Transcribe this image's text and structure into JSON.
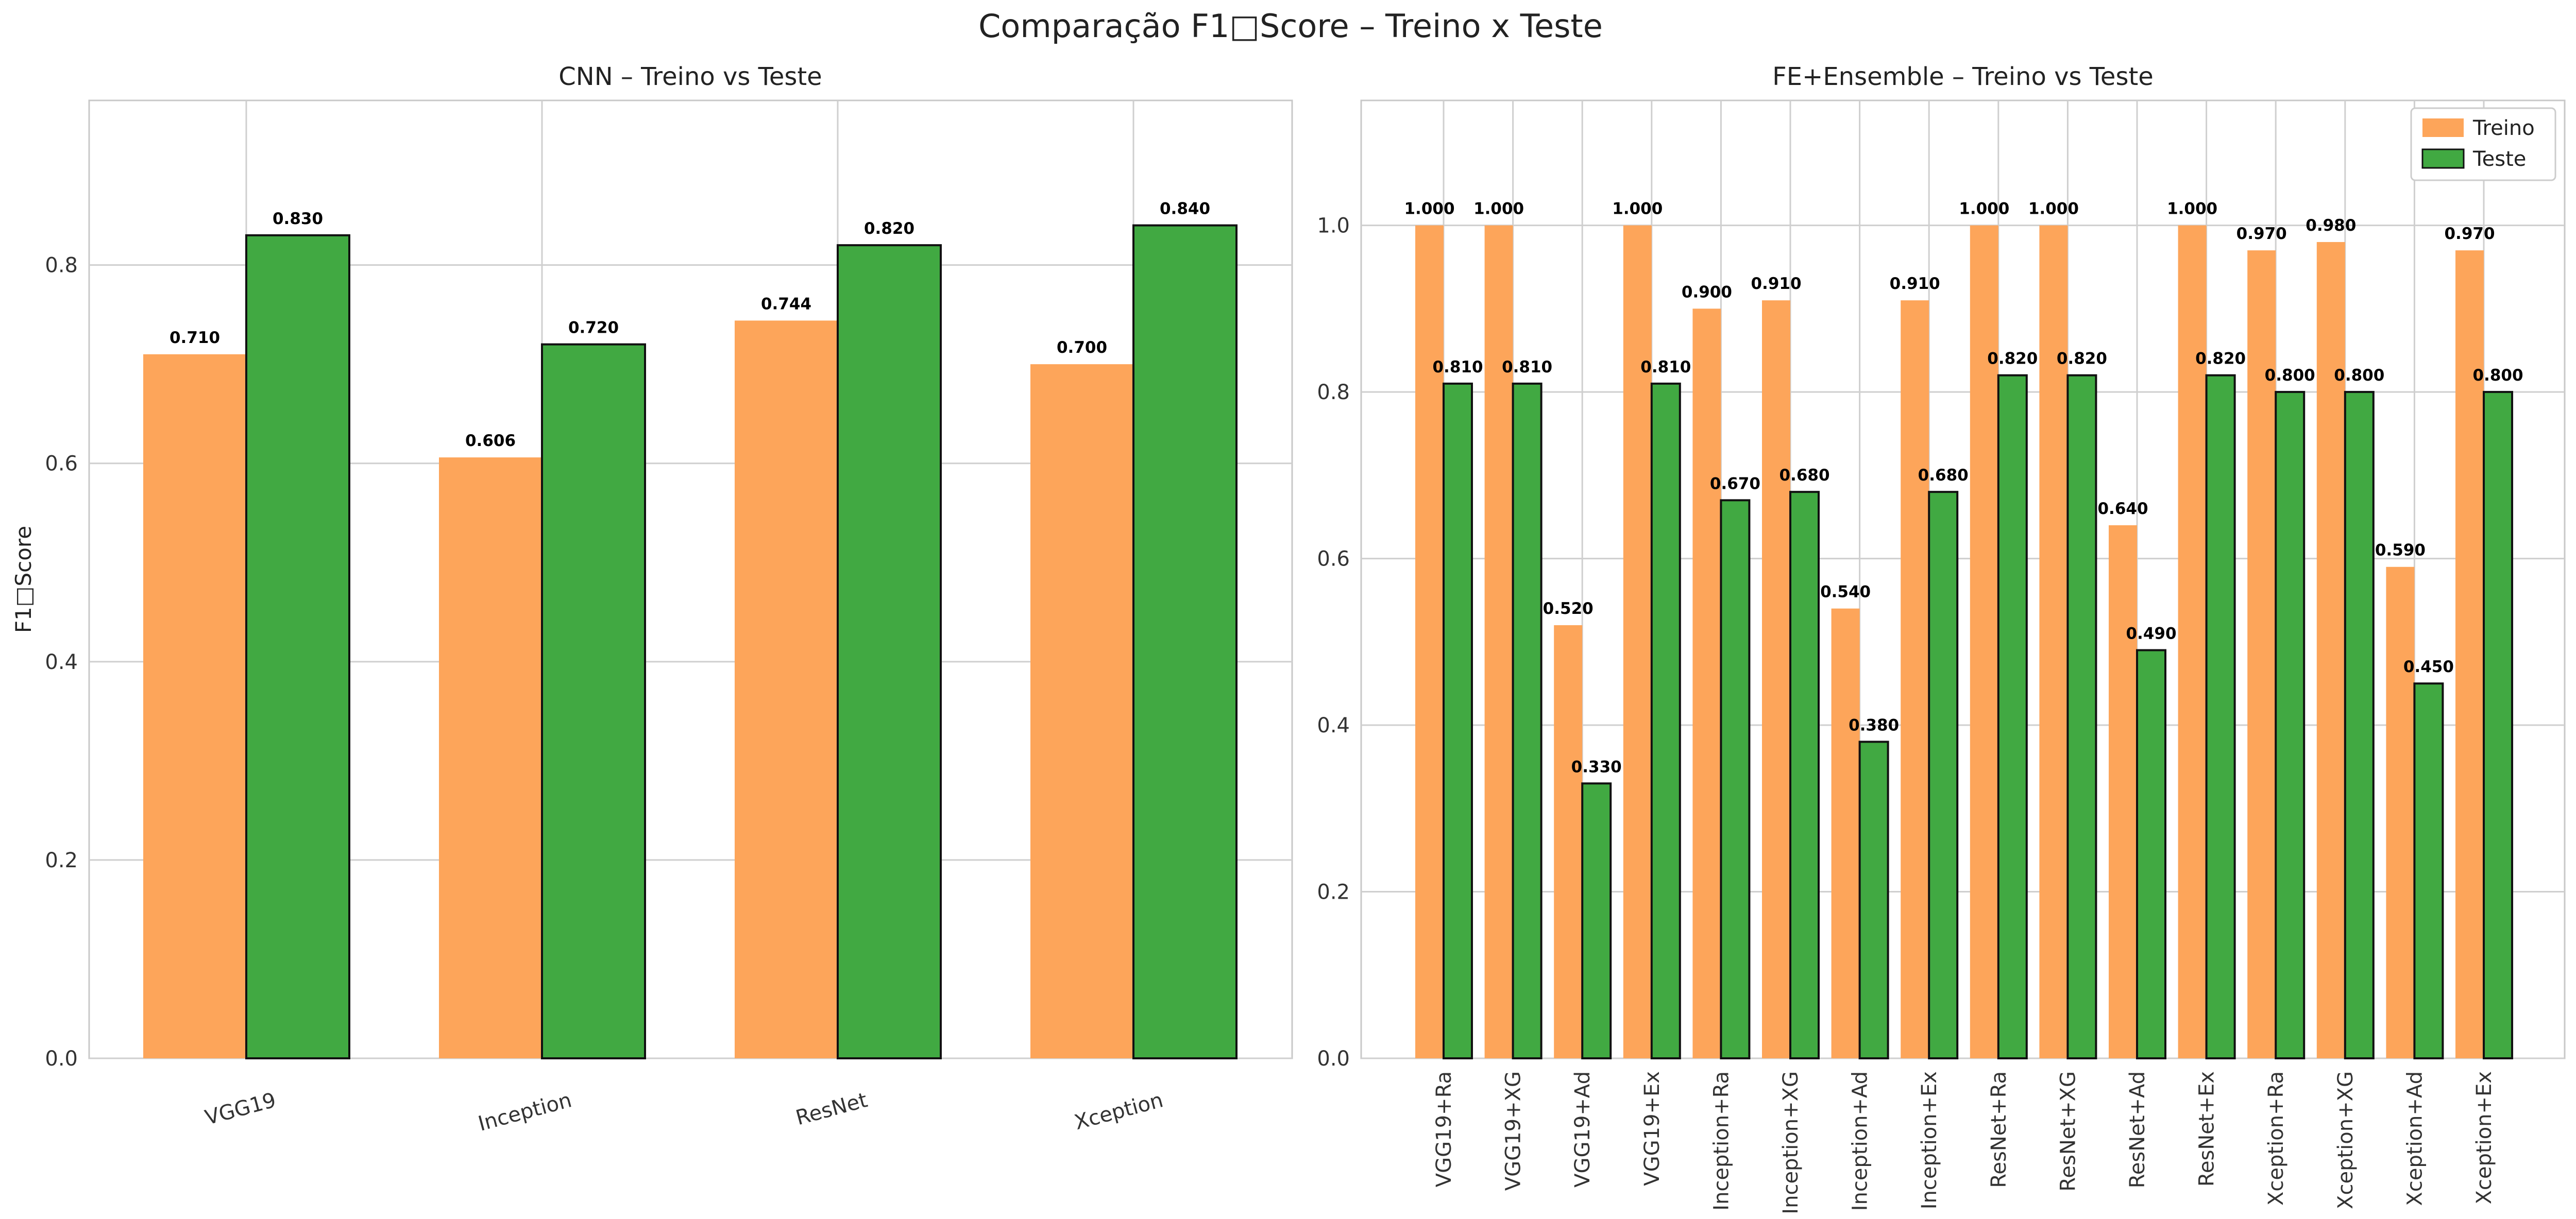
{
  "figure": {
    "title": "Comparação F1□Score – Treino x Teste"
  },
  "colors": {
    "treino": "#fda55a",
    "teste": "#41a942",
    "edge": "#111111"
  },
  "chart_data": [
    {
      "type": "bar",
      "title": "CNN – Treino vs Teste",
      "xlabel": "",
      "ylabel": "F1□Score",
      "ylim": [
        0,
        0.966
      ],
      "yticks": [
        "0.0",
        "0.2",
        "0.4",
        "0.6",
        "0.8"
      ],
      "ytick_values": [
        0,
        0.2,
        0.4,
        0.6,
        0.8
      ],
      "grid": true,
      "legend": "none",
      "categories": [
        "VGG19",
        "Inception",
        "ResNet",
        "Xception"
      ],
      "series": [
        {
          "name": "Treino",
          "values": [
            0.71,
            0.606,
            0.744,
            0.7
          ],
          "labels": [
            "0.710",
            "0.606",
            "0.744",
            "0.700"
          ]
        },
        {
          "name": "Teste",
          "values": [
            0.83,
            0.72,
            0.82,
            0.84
          ],
          "labels": [
            "0.830",
            "0.720",
            "0.820",
            "0.840"
          ]
        }
      ]
    },
    {
      "type": "bar",
      "title": "FE+Ensemble – Treino vs Teste",
      "xlabel": "",
      "ylabel": "",
      "ylim": [
        0,
        1.15
      ],
      "yticks": [
        "0.0",
        "0.2",
        "0.4",
        "0.6",
        "0.8",
        "1.0"
      ],
      "ytick_values": [
        0,
        0.2,
        0.4,
        0.6,
        0.8,
        1.0
      ],
      "grid": true,
      "legend": "top-right",
      "categories": [
        "VGG19+Ra",
        "VGG19+XG",
        "VGG19+Ad",
        "VGG19+Ex",
        "Inception+Ra",
        "Inception+XG",
        "Inception+Ad",
        "Inception+Ex",
        "ResNet+Ra",
        "ResNet+XG",
        "ResNet+Ad",
        "ResNet+Ex",
        "Xception+Ra",
        "Xception+XG",
        "Xception+Ad",
        "Xception+Ex"
      ],
      "series": [
        {
          "name": "Treino",
          "values": [
            1.0,
            1.0,
            0.52,
            1.0,
            0.9,
            0.91,
            0.54,
            0.91,
            1.0,
            1.0,
            0.64,
            1.0,
            0.97,
            0.98,
            0.59,
            0.97
          ],
          "labels": [
            "1.000",
            "1.000",
            "0.520",
            "1.000",
            "0.900",
            "0.910",
            "0.540",
            "0.910",
            "1.000",
            "1.000",
            "0.640",
            "1.000",
            "0.970",
            "0.980",
            "0.590",
            "0.970"
          ]
        },
        {
          "name": "Teste",
          "values": [
            0.81,
            0.81,
            0.33,
            0.81,
            0.67,
            0.68,
            0.38,
            0.68,
            0.82,
            0.82,
            0.49,
            0.82,
            0.8,
            0.8,
            0.45,
            0.8
          ],
          "labels": [
            "0.810",
            "0.810",
            "0.330",
            "0.810",
            "0.670",
            "0.680",
            "0.380",
            "0.680",
            "0.820",
            "0.820",
            "0.490",
            "0.820",
            "0.800",
            "0.800",
            "0.450",
            "0.800"
          ]
        }
      ]
    }
  ]
}
